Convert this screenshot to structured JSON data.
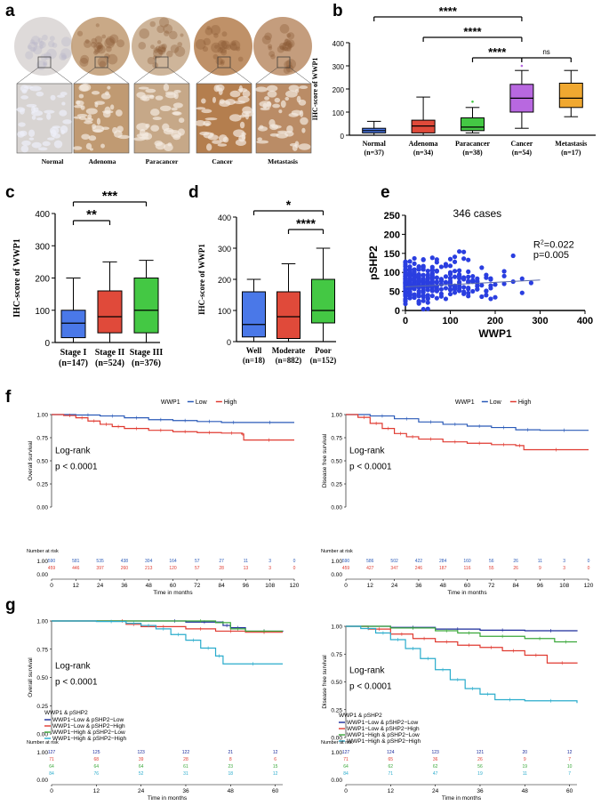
{
  "panel_labels": {
    "a": "a",
    "b": "b",
    "c": "c",
    "d": "d",
    "e": "e",
    "f": "f",
    "g": "g"
  },
  "panel_a": {
    "captions": [
      "Normal",
      "Adenoma",
      "Paracancer",
      "Cancer",
      "Metastasis"
    ],
    "tissue_colors": {
      "normal": "#d8d4d2",
      "adenoma": "#c09a72",
      "paracancer": "#c6a888",
      "cancer": "#b47e4e",
      "metastasis": "#ba8c66"
    }
  },
  "chart_data": [
    {
      "id": "b",
      "type": "box",
      "ylabel": "IHC-score of WWP1",
      "ylim": [
        0,
        400
      ],
      "yticks": [
        0,
        100,
        200,
        300,
        400
      ],
      "categories": [
        "Normal\n(n=37)",
        "Adenoma\n(n=34)",
        "Paracancer\n(n=38)",
        "Cancer\n(n=54)",
        "Metastasis\n(n=17)"
      ],
      "colors": [
        "#4a78e8",
        "#e04a3a",
        "#44c844",
        "#b868e0",
        "#f0a830"
      ],
      "boxes": [
        [
          0,
          10,
          20,
          30,
          60
        ],
        [
          0,
          10,
          40,
          65,
          165
        ],
        [
          10,
          20,
          35,
          75,
          120
        ],
        [
          30,
          100,
          160,
          220,
          280
        ],
        [
          80,
          120,
          160,
          225,
          280
        ]
      ],
      "outliers": [
        [],
        [],
        [
          145
        ],
        [
          300
        ],
        []
      ],
      "sig": [
        {
          "from": 0,
          "to": 3,
          "label": "****"
        },
        {
          "from": 1,
          "to": 3,
          "label": "****"
        },
        {
          "from": 2,
          "to": 3,
          "label": "****"
        },
        {
          "from": 3,
          "to": 4,
          "label": "ns"
        }
      ]
    },
    {
      "id": "c",
      "type": "box",
      "ylabel": "IHC-score of WWP1",
      "ylim": [
        0,
        400
      ],
      "yticks": [
        0,
        100,
        200,
        300,
        400
      ],
      "categories": [
        "Stage I\n(n=147)",
        "Stage II\n(n=524)",
        "Stage III\n(n=376)"
      ],
      "colors": [
        "#4a78e8",
        "#e04a3a",
        "#44c844"
      ],
      "boxes": [
        [
          0,
          15,
          60,
          100,
          200
        ],
        [
          0,
          30,
          80,
          160,
          250
        ],
        [
          0,
          30,
          100,
          200,
          255
        ]
      ],
      "outliers": [
        [],
        [],
        []
      ],
      "sig": [
        {
          "from": 0,
          "to": 1,
          "label": "**"
        },
        {
          "from": 0,
          "to": 2,
          "label": "***"
        }
      ]
    },
    {
      "id": "d",
      "type": "box",
      "ylabel": "IHC-score of WWP1",
      "ylim": [
        0,
        400
      ],
      "yticks": [
        0,
        100,
        200,
        300,
        400
      ],
      "categories": [
        "Well\n(n=18)",
        "Moderate\n(n=882)",
        "Poor\n(n=152)"
      ],
      "colors": [
        "#4a78e8",
        "#e04a3a",
        "#44c844"
      ],
      "boxes": [
        [
          0,
          15,
          55,
          160,
          200
        ],
        [
          0,
          10,
          80,
          160,
          250
        ],
        [
          0,
          60,
          100,
          200,
          300
        ]
      ],
      "outliers": [
        [],
        [],
        []
      ],
      "sig": [
        {
          "from": 0,
          "to": 2,
          "label": "*"
        },
        {
          "from": 1,
          "to": 2,
          "label": "****"
        }
      ]
    },
    {
      "id": "e",
      "type": "scatter",
      "title": "346 cases",
      "xlabel": "WWP1",
      "ylabel": "pSHP2",
      "xlim": [
        0,
        400
      ],
      "ylim": [
        0,
        250
      ],
      "xticks": [
        0,
        100,
        200,
        300,
        400
      ],
      "yticks": [
        0,
        50,
        100,
        150,
        200,
        250
      ],
      "r2_label": "R",
      "r2_sup": "2",
      "r2_value": "=0.022",
      "p_label": "p=0.005",
      "regression": [
        [
          0,
          62
        ],
        [
          300,
          80
        ]
      ],
      "point_color": "#2a3ee0"
    },
    {
      "id": "f1",
      "type": "km",
      "legend_title": "WWP1",
      "legend": [
        "Low",
        "High"
      ],
      "colors": [
        "#2a5ab8",
        "#e03a30"
      ],
      "ylabel": "Overall survival",
      "xlabel": "Time in months",
      "xticks": [
        0,
        12,
        24,
        36,
        48,
        60,
        72,
        84,
        96,
        108,
        120
      ],
      "yticks": [
        "0.00",
        "0.25",
        "0.50",
        "0.75",
        "1.00"
      ],
      "logrank": "Log-rank",
      "pvalue": "p < 0.0001",
      "risk_title": "Number at risk",
      "risk": [
        [
          "590",
          "581",
          "535",
          "438",
          "304",
          "164",
          "57",
          "27",
          "11",
          "3",
          "0"
        ],
        [
          "459",
          "446",
          "397",
          "260",
          "213",
          "120",
          "57",
          "28",
          "13",
          "3",
          "0"
        ]
      ],
      "curves": [
        [
          [
            0,
            1
          ],
          [
            12,
            0.995
          ],
          [
            24,
            0.985
          ],
          [
            36,
            0.965
          ],
          [
            48,
            0.945
          ],
          [
            60,
            0.935
          ],
          [
            72,
            0.925
          ],
          [
            84,
            0.915
          ],
          [
            96,
            0.915
          ],
          [
            120,
            0.915
          ]
        ],
        [
          [
            0,
            1
          ],
          [
            6,
            0.99
          ],
          [
            12,
            0.965
          ],
          [
            18,
            0.93
          ],
          [
            24,
            0.895
          ],
          [
            30,
            0.87
          ],
          [
            36,
            0.85
          ],
          [
            48,
            0.83
          ],
          [
            60,
            0.815
          ],
          [
            72,
            0.805
          ],
          [
            84,
            0.8
          ],
          [
            94,
            0.79
          ],
          [
            95,
            0.725
          ],
          [
            120,
            0.725
          ]
        ]
      ]
    },
    {
      "id": "f2",
      "type": "km",
      "legend_title": "WWP1",
      "legend": [
        "Low",
        "High"
      ],
      "colors": [
        "#2a5ab8",
        "#e03a30"
      ],
      "ylabel": "Disease free survival",
      "xlabel": "Time in months",
      "xticks": [
        0,
        12,
        24,
        36,
        48,
        60,
        72,
        84,
        96,
        108,
        120
      ],
      "yticks": [
        "0.00",
        "0.25",
        "0.50",
        "0.75",
        "1.00"
      ],
      "logrank": "Log-rank",
      "pvalue": "p < 0.0001",
      "risk_title": "Number at risk",
      "risk": [
        [
          "590",
          "586",
          "502",
          "422",
          "284",
          "160",
          "56",
          "26",
          "11",
          "3",
          "0"
        ],
        [
          "459",
          "427",
          "347",
          "246",
          "187",
          "116",
          "55",
          "26",
          "9",
          "3",
          "0"
        ]
      ],
      "curves": [
        [
          [
            0,
            1
          ],
          [
            12,
            0.985
          ],
          [
            24,
            0.955
          ],
          [
            36,
            0.92
          ],
          [
            48,
            0.895
          ],
          [
            60,
            0.875
          ],
          [
            72,
            0.86
          ],
          [
            84,
            0.835
          ],
          [
            96,
            0.83
          ],
          [
            120,
            0.83
          ]
        ],
        [
          [
            0,
            1
          ],
          [
            6,
            0.97
          ],
          [
            12,
            0.905
          ],
          [
            18,
            0.85
          ],
          [
            24,
            0.795
          ],
          [
            30,
            0.76
          ],
          [
            36,
            0.735
          ],
          [
            48,
            0.705
          ],
          [
            60,
            0.69
          ],
          [
            72,
            0.675
          ],
          [
            84,
            0.665
          ],
          [
            88,
            0.62
          ],
          [
            120,
            0.62
          ]
        ]
      ]
    },
    {
      "id": "g1",
      "type": "km",
      "legend_title": "WWP1 & pSHP2",
      "legend": [
        "WWP1−Low & pSHP2−Low",
        "WWP1−Low & pSHP2−High",
        "WWP1−High & pSHP2−Low",
        "WWP1−High & pSHP2−High"
      ],
      "colors": [
        "#1a2a9a",
        "#e03a30",
        "#3aa83a",
        "#2aaccc"
      ],
      "ylabel": "Overall survival",
      "xlabel": "Time in months",
      "xticks": [
        0,
        12,
        24,
        36,
        48,
        60
      ],
      "yticks": [
        "0.00",
        "0.25",
        "0.50",
        "0.75",
        "1.00"
      ],
      "logrank": "Log-rank",
      "pvalue": "p < 0.0001",
      "risk_title": "Number at risk",
      "risk": [
        [
          "127",
          "125",
          "123",
          "122",
          "21",
          "12"
        ],
        [
          "71",
          "68",
          "39",
          "28",
          "8",
          "6"
        ],
        [
          "64",
          "64",
          "64",
          "61",
          "23",
          "15"
        ],
        [
          "84",
          "76",
          "52",
          "31",
          "18",
          "12"
        ]
      ],
      "curves": [
        [
          [
            0,
            1
          ],
          [
            30,
            1
          ],
          [
            36,
            0.99
          ],
          [
            46,
            0.96
          ],
          [
            48,
            0.94
          ],
          [
            52,
            0.91
          ],
          [
            62,
            0.905
          ]
        ],
        [
          [
            0,
            1
          ],
          [
            18,
            1
          ],
          [
            20,
            0.97
          ],
          [
            24,
            0.95
          ],
          [
            36,
            0.93
          ],
          [
            44,
            0.91
          ],
          [
            52,
            0.9
          ],
          [
            62,
            0.9
          ]
        ],
        [
          [
            0,
            1
          ],
          [
            36,
            1
          ],
          [
            44,
            0.985
          ],
          [
            48,
            0.93
          ],
          [
            52,
            0.91
          ],
          [
            62,
            0.91
          ]
        ],
        [
          [
            0,
            1
          ],
          [
            12,
            0.995
          ],
          [
            20,
            0.98
          ],
          [
            24,
            0.96
          ],
          [
            28,
            0.93
          ],
          [
            32,
            0.88
          ],
          [
            36,
            0.83
          ],
          [
            40,
            0.76
          ],
          [
            44,
            0.69
          ],
          [
            46,
            0.62
          ],
          [
            62,
            0.62
          ]
        ]
      ]
    },
    {
      "id": "g2",
      "type": "km",
      "legend_title": "WWP1 & pSHP2",
      "legend": [
        "WWP1−Low & pSHP2−Low",
        "WWP1−Low & pSHP2−High",
        "WWP1−High & pSHP2−Low",
        "WWP1−High & pSHP2−High"
      ],
      "colors": [
        "#1a2a9a",
        "#e03a30",
        "#3aa83a",
        "#2aaccc"
      ],
      "ylabel": "Disease free survival",
      "xlabel": "Time in months",
      "xticks": [
        0,
        12,
        24,
        36,
        48,
        60
      ],
      "yticks": [
        "0.00",
        "0.25",
        "0.50",
        "0.75",
        "1.00"
      ],
      "logrank": "Log-rank",
      "pvalue": "p < 0.0001",
      "risk_title": "Number at risk",
      "risk": [
        [
          "127",
          "124",
          "123",
          "121",
          "20",
          "12"
        ],
        [
          "71",
          "65",
          "36",
          "26",
          "9",
          "7"
        ],
        [
          "64",
          "62",
          "62",
          "56",
          "19",
          "10"
        ],
        [
          "84",
          "71",
          "47",
          "19",
          "11",
          "7"
        ]
      ],
      "curves": [
        [
          [
            0,
            1
          ],
          [
            12,
            0.99
          ],
          [
            24,
            0.975
          ],
          [
            36,
            0.965
          ],
          [
            48,
            0.96
          ],
          [
            62,
            0.955
          ]
        ],
        [
          [
            0,
            1
          ],
          [
            6,
            0.975
          ],
          [
            12,
            0.93
          ],
          [
            18,
            0.89
          ],
          [
            24,
            0.86
          ],
          [
            30,
            0.83
          ],
          [
            36,
            0.81
          ],
          [
            42,
            0.78
          ],
          [
            48,
            0.74
          ],
          [
            54,
            0.67
          ],
          [
            62,
            0.665
          ]
        ],
        [
          [
            0,
            1
          ],
          [
            12,
            0.985
          ],
          [
            24,
            0.96
          ],
          [
            30,
            0.94
          ],
          [
            36,
            0.91
          ],
          [
            48,
            0.89
          ],
          [
            56,
            0.86
          ],
          [
            62,
            0.86
          ]
        ],
        [
          [
            0,
            1
          ],
          [
            4,
            0.98
          ],
          [
            8,
            0.94
          ],
          [
            12,
            0.88
          ],
          [
            16,
            0.8
          ],
          [
            20,
            0.71
          ],
          [
            24,
            0.61
          ],
          [
            28,
            0.52
          ],
          [
            32,
            0.44
          ],
          [
            36,
            0.39
          ],
          [
            40,
            0.34
          ],
          [
            48,
            0.33
          ],
          [
            62,
            0.31
          ]
        ]
      ]
    }
  ]
}
